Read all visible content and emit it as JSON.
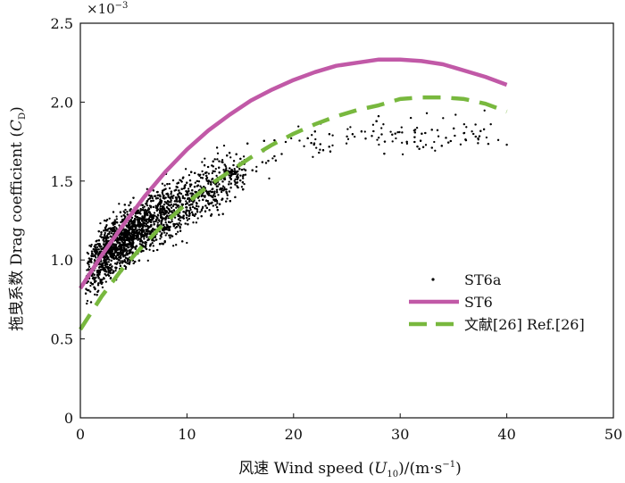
{
  "chart_data": {
    "type": "scatter",
    "title": "",
    "xlabel": "风速 Wind speed (U₁₀)/(m·s⁻¹)",
    "xlabel_parts": {
      "prefix": "风速 Wind speed (",
      "var": "U",
      "sub": "10",
      "mid": ")/(m·s",
      "sup": "−1",
      "suffix": ")"
    },
    "ylabel": "拖曳系数 Drag coefficient (C_D)",
    "ylabel_parts": {
      "prefix": "拖曳系数 Drag coefficient (",
      "var": "C",
      "sub": "D",
      "suffix": ")"
    },
    "y_multiplier": "×10⁻³",
    "y_multiplier_parts": {
      "base": "×10",
      "sup": "−3"
    },
    "xlim": [
      0,
      50
    ],
    "ylim": [
      0,
      2.5
    ],
    "xticks": [
      0,
      10,
      20,
      30,
      40,
      50
    ],
    "yticks": [
      0,
      0.5,
      1.0,
      1.5,
      2.0,
      2.5
    ],
    "yticklabels": [
      "0",
      "0.5",
      "1.0",
      "1.5",
      "2.0",
      "2.5"
    ],
    "grid": false,
    "legend_position": "right",
    "series": [
      {
        "name": "ST6a",
        "style": "points",
        "color": "#000000",
        "trend": {
          "x": [
            0.5,
            2,
            4,
            6,
            8,
            10,
            12,
            14,
            16,
            18,
            20,
            22,
            25,
            28,
            30,
            32,
            35,
            37,
            40
          ],
          "y": [
            0.88,
            1.02,
            1.13,
            1.22,
            1.3,
            1.37,
            1.45,
            1.52,
            1.59,
            1.65,
            1.7,
            1.74,
            1.77,
            1.78,
            1.79,
            1.8,
            1.8,
            1.8,
            1.76
          ]
        },
        "outliers": [
          [
            36,
            1.86
          ],
          [
            37.3,
            1.74
          ],
          [
            38.5,
            1.86
          ],
          [
            39.2,
            1.76
          ],
          [
            40,
            1.73
          ],
          [
            35.2,
            1.92
          ],
          [
            32.5,
            1.93
          ],
          [
            31,
            1.9
          ]
        ]
      },
      {
        "name": "ST6",
        "style": "line",
        "color": "#c159a7",
        "x": [
          0,
          2,
          4,
          6,
          8,
          10,
          12,
          14,
          16,
          18,
          20,
          22,
          24,
          26,
          28,
          30,
          32,
          34,
          36,
          38,
          40
        ],
        "y": [
          0.82,
          1.03,
          1.22,
          1.4,
          1.56,
          1.7,
          1.82,
          1.92,
          2.01,
          2.08,
          2.14,
          2.19,
          2.23,
          2.25,
          2.27,
          2.27,
          2.26,
          2.24,
          2.2,
          2.16,
          2.11
        ]
      },
      {
        "name": "文献[26] Ref.[26]",
        "style": "dashed",
        "color": "#78b83e",
        "x": [
          0,
          2,
          4,
          6,
          8,
          10,
          12,
          14,
          16,
          18,
          20,
          22,
          24,
          26,
          28,
          30,
          32,
          34,
          36,
          38,
          40
        ],
        "y": [
          0.56,
          0.77,
          0.95,
          1.1,
          1.24,
          1.36,
          1.47,
          1.56,
          1.65,
          1.73,
          1.8,
          1.86,
          1.91,
          1.95,
          1.98,
          2.02,
          2.03,
          2.03,
          2.02,
          1.99,
          1.94
        ]
      }
    ]
  }
}
